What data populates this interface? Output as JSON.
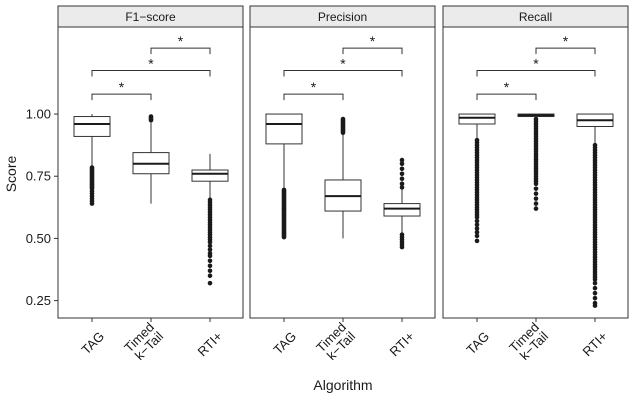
{
  "chart_data": {
    "type": "boxplot",
    "xlabel": "Algorithm",
    "ylabel": "Score",
    "ylim": [
      0.18,
      1.35
    ],
    "yticks": [
      0.25,
      0.5,
      0.75,
      1.0
    ],
    "ytick_labels": [
      "0.25",
      "0.50",
      "0.75",
      "1.00"
    ],
    "categories": [
      {
        "key": "tag",
        "lines": [
          "TAG"
        ]
      },
      {
        "key": "timed",
        "lines": [
          "Timed",
          "k−Tail"
        ]
      },
      {
        "key": "rti",
        "lines": [
          "RTI+"
        ]
      }
    ],
    "significance_marker": "*",
    "panels": [
      {
        "title": "F1−score",
        "boxes": [
          {
            "q1": 0.91,
            "median": 0.96,
            "q3": 0.99,
            "whisker_low": 0.79,
            "whisker_high": 1.0,
            "outliers": [
              0.785,
              0.78,
              0.775,
              0.77,
              0.765,
              0.76,
              0.755,
              0.75,
              0.745,
              0.74,
              0.735,
              0.73,
              0.725,
              0.72,
              0.715,
              0.71,
              0.705,
              0.7,
              0.69,
              0.68,
              0.67,
              0.66,
              0.65,
              0.64
            ]
          },
          {
            "q1": 0.76,
            "median": 0.8,
            "q3": 0.845,
            "whisker_low": 0.64,
            "whisker_high": 0.965,
            "outliers": [
              0.975,
              0.98,
              0.985,
              0.99
            ]
          },
          {
            "q1": 0.73,
            "median": 0.76,
            "q3": 0.775,
            "whisker_low": 0.66,
            "whisker_high": 0.84,
            "outliers": [
              0.655,
              0.645,
              0.635,
              0.625,
              0.615,
              0.605,
              0.595,
              0.585,
              0.575,
              0.565,
              0.555,
              0.545,
              0.535,
              0.525,
              0.515,
              0.505,
              0.495,
              0.485,
              0.47,
              0.455,
              0.44,
              0.43,
              0.41,
              0.39,
              0.37,
              0.35,
              0.32
            ]
          }
        ]
      },
      {
        "title": "Precision",
        "boxes": [
          {
            "q1": 0.88,
            "median": 0.96,
            "q3": 1.0,
            "whisker_low": 0.7,
            "whisker_high": 1.0,
            "outliers": [
              0.695,
              0.69,
              0.685,
              0.68,
              0.675,
              0.67,
              0.665,
              0.66,
              0.655,
              0.65,
              0.645,
              0.64,
              0.635,
              0.63,
              0.625,
              0.62,
              0.615,
              0.61,
              0.605,
              0.6,
              0.595,
              0.59,
              0.585,
              0.58,
              0.575,
              0.57,
              0.565,
              0.56,
              0.555,
              0.55,
              0.545,
              0.54,
              0.535,
              0.53,
              0.525,
              0.52,
              0.515,
              0.51,
              0.505
            ]
          },
          {
            "q1": 0.61,
            "median": 0.67,
            "q3": 0.735,
            "whisker_low": 0.5,
            "whisker_high": 0.92,
            "outliers": [
              0.925,
              0.93,
              0.935,
              0.94,
              0.945,
              0.95,
              0.955,
              0.96,
              0.965,
              0.97,
              0.975,
              0.98
            ]
          },
          {
            "q1": 0.59,
            "median": 0.62,
            "q3": 0.64,
            "whisker_low": 0.52,
            "whisker_high": 0.7,
            "outliers": [
              0.705,
              0.72,
              0.74,
              0.76,
              0.78,
              0.8,
              0.815,
              0.515,
              0.505,
              0.495,
              0.485,
              0.475,
              0.465
            ]
          }
        ]
      },
      {
        "title": "Recall",
        "boxes": [
          {
            "q1": 0.96,
            "median": 0.985,
            "q3": 1.0,
            "whisker_low": 0.9,
            "whisker_high": 1.0,
            "outliers": [
              0.895,
              0.885,
              0.875,
              0.865,
              0.855,
              0.845,
              0.835,
              0.825,
              0.815,
              0.805,
              0.795,
              0.785,
              0.775,
              0.765,
              0.755,
              0.745,
              0.735,
              0.725,
              0.715,
              0.705,
              0.695,
              0.685,
              0.675,
              0.665,
              0.655,
              0.645,
              0.635,
              0.625,
              0.615,
              0.605,
              0.595,
              0.585,
              0.57,
              0.555,
              0.54,
              0.525,
              0.51,
              0.49
            ]
          },
          {
            "q1": 0.99,
            "median": 0.995,
            "q3": 1.0,
            "whisker_low": 0.985,
            "whisker_high": 1.0,
            "outliers": [
              0.98,
              0.97,
              0.96,
              0.95,
              0.94,
              0.93,
              0.92,
              0.91,
              0.9,
              0.89,
              0.88,
              0.87,
              0.86,
              0.85,
              0.84,
              0.83,
              0.82,
              0.81,
              0.8,
              0.79,
              0.78,
              0.77,
              0.76,
              0.75,
              0.74,
              0.73,
              0.72,
              0.7,
              0.68,
              0.66,
              0.64,
              0.62
            ]
          },
          {
            "q1": 0.95,
            "median": 0.975,
            "q3": 1.0,
            "whisker_low": 0.88,
            "whisker_high": 1.0,
            "outliers": [
              0.875,
              0.865,
              0.855,
              0.845,
              0.835,
              0.825,
              0.815,
              0.805,
              0.795,
              0.785,
              0.775,
              0.765,
              0.755,
              0.745,
              0.735,
              0.725,
              0.715,
              0.705,
              0.695,
              0.685,
              0.675,
              0.665,
              0.655,
              0.645,
              0.635,
              0.625,
              0.615,
              0.605,
              0.595,
              0.585,
              0.575,
              0.565,
              0.555,
              0.545,
              0.535,
              0.525,
              0.515,
              0.505,
              0.495,
              0.485,
              0.475,
              0.465,
              0.455,
              0.445,
              0.435,
              0.425,
              0.415,
              0.405,
              0.395,
              0.385,
              0.375,
              0.365,
              0.355,
              0.345,
              0.335,
              0.32,
              0.3,
              0.28,
              0.26,
              0.24,
              0.23
            ]
          }
        ]
      }
    ],
    "comparisons": [
      {
        "from": 0,
        "to": 1,
        "y": 1.08
      },
      {
        "from": 0,
        "to": 2,
        "y": 1.175
      },
      {
        "from": 1,
        "to": 2,
        "y": 1.265
      }
    ]
  }
}
